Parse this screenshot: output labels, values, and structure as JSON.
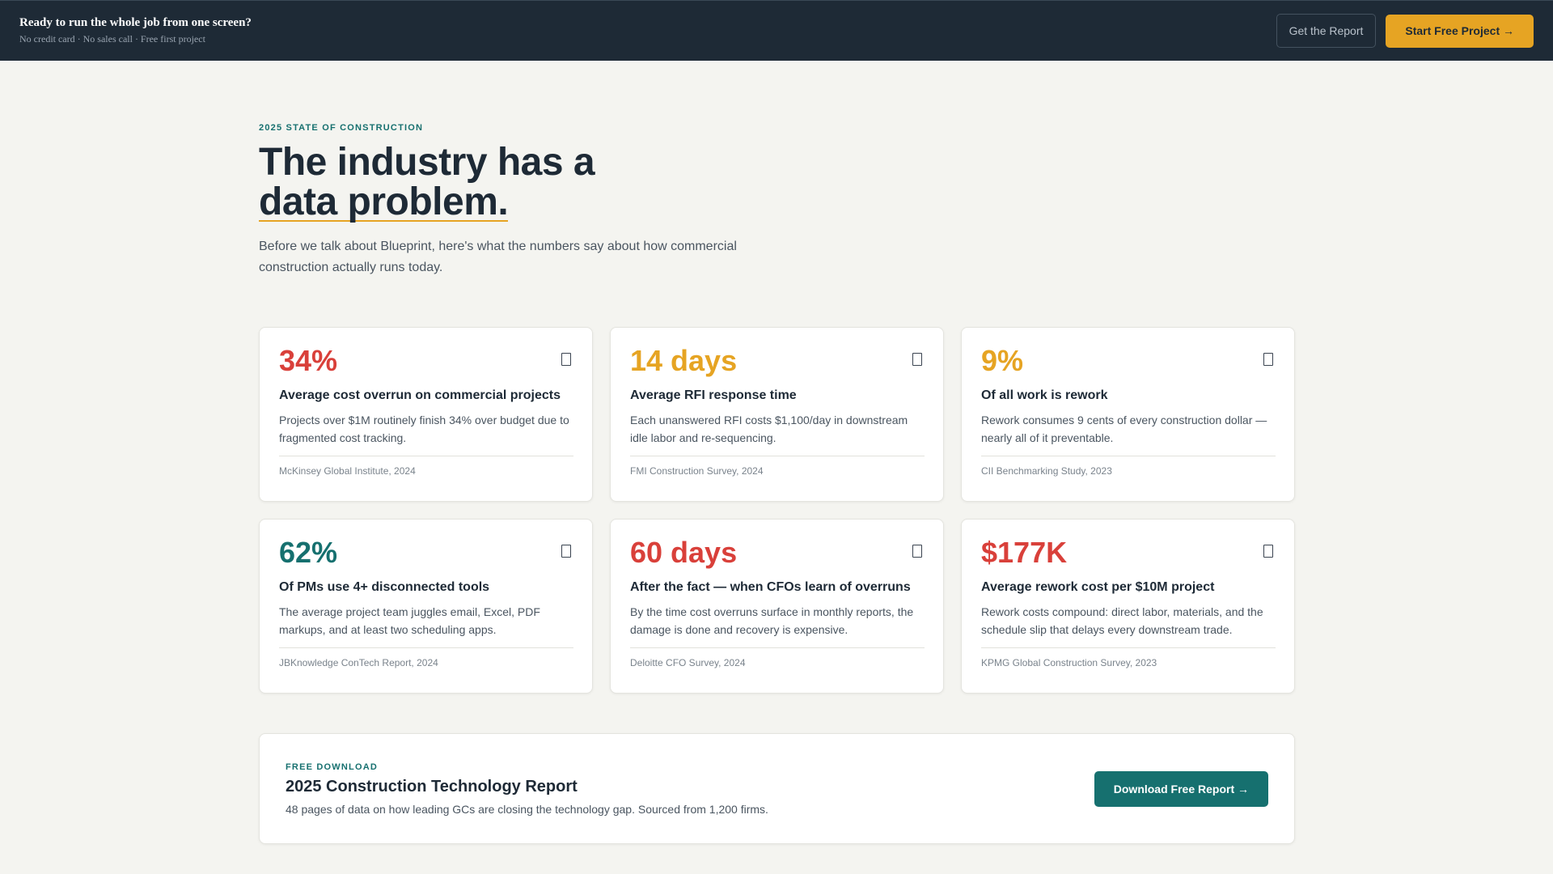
{
  "topbar": {
    "headline": "Ready to run the whole job from one screen?",
    "subline": "No credit card · No sales call · Free first project",
    "report_button": "Get the Report",
    "start_button": "Start Free Project →"
  },
  "hero": {
    "eyebrow": "2025 STATE OF CONSTRUCTION",
    "title_line1": "The industry has a",
    "title_line2": "data problem.",
    "subtitle": "Before we talk about Blueprint, here's what the numbers say about how commercial construction actually runs today."
  },
  "colors": {
    "red": "#d9403a",
    "gold": "#e6a423",
    "teal": "#16706f",
    "navy": "#1e2a36"
  },
  "stats": [
    {
      "value": "34%",
      "color": "#d9403a",
      "label": "Average cost overrun on commercial projects",
      "description": "Projects over $1M routinely finish 34% over budget due to fragmented cost tracking.",
      "source": "McKinsey Global Institute, 2024",
      "icon": "bookmark-icon"
    },
    {
      "value": "14 days",
      "color": "#e6a423",
      "label": "Average RFI response time",
      "description": "Each unanswered RFI costs $1,100/day in downstream idle labor and re-sequencing.",
      "source": "FMI Construction Survey, 2024",
      "icon": "bookmark-icon"
    },
    {
      "value": "9%",
      "color": "#e6a423",
      "label": "Of all work is rework",
      "description": "Rework consumes 9 cents of every construction dollar — nearly all of it preventable.",
      "source": "CII Benchmarking Study, 2023",
      "icon": "bookmark-icon"
    },
    {
      "value": "62%",
      "color": "#16706f",
      "label": "Of PMs use 4+ disconnected tools",
      "description": "The average project team juggles email, Excel, PDF markups, and at least two scheduling apps.",
      "source": "JBKnowledge ConTech Report, 2024",
      "icon": "bookmark-icon"
    },
    {
      "value": "60 days",
      "color": "#d9403a",
      "label": "After the fact — when CFOs learn of overruns",
      "description": "By the time cost overruns surface in monthly reports, the damage is done and recovery is expensive.",
      "source": "Deloitte CFO Survey, 2024",
      "icon": "bookmark-icon"
    },
    {
      "value": "$177K",
      "color": "#d9403a",
      "label": "Average rework cost per $10M project",
      "description": "Rework costs compound: direct labor, materials, and the schedule slip that delays every downstream trade.",
      "source": "KPMG Global Construction Survey, 2023",
      "icon": "bookmark-icon"
    }
  ],
  "download": {
    "kicker": "FREE DOWNLOAD",
    "title": "2025 Construction Technology Report",
    "subtitle": "48 pages of data on how leading GCs are closing the technology gap. Sourced from 1,200 firms.",
    "button": "Download Free Report →"
  }
}
